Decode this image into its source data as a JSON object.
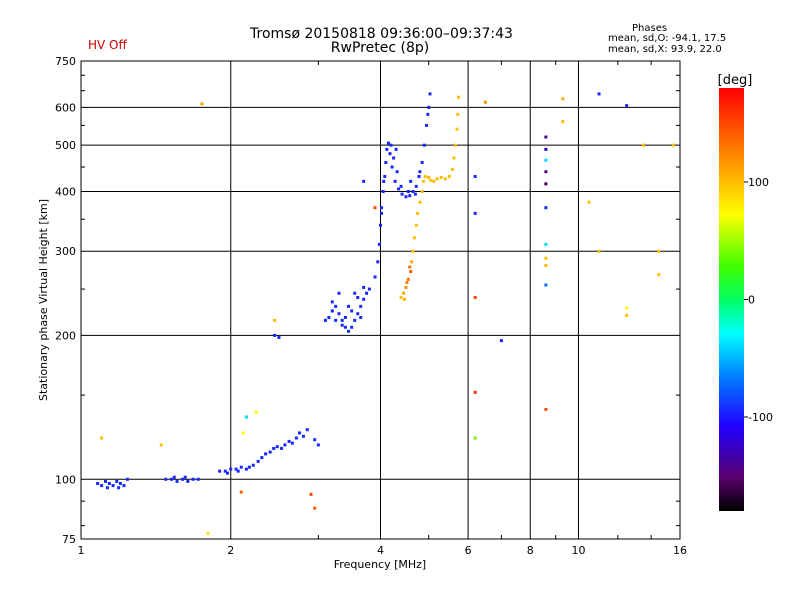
{
  "header": {
    "title": "Tromsø 20150818 09:36:00–09:37:43",
    "subtitle": "RwPretec (8p)",
    "hv_status": "HV Off",
    "phases_title": "Phases",
    "stat_o": "mean, sd,O: -94.1, 17.5",
    "stat_x": "mean, sd,X:  93.9, 22.0"
  },
  "colors": {
    "hv_status": "#d00000",
    "o_mode_typical": "#1040e0",
    "x_mode_typical": "#e0e000"
  },
  "chart_data": {
    "type": "scatter",
    "title": "Tromsø 20150818 09:36:00–09:37:43",
    "subtitle": "RwPretec (8p)",
    "xlabel": "Frequency [MHz]",
    "ylabel": "Stationary phase Virtual Height [km]",
    "x_scale": "log",
    "y_scale": "log",
    "xlim": [
      1,
      16
    ],
    "ylim": [
      75,
      750
    ],
    "x_ticks": [
      1,
      2,
      4,
      6,
      8,
      10,
      16
    ],
    "x_tick_labels": [
      "1",
      "2",
      "4",
      "6",
      "8",
      "10",
      "16"
    ],
    "y_ticks": [
      75,
      100,
      200,
      300,
      400,
      500,
      600,
      750
    ],
    "y_tick_labels": [
      "75",
      "100",
      "200",
      "300",
      "400",
      "500",
      "600",
      "750"
    ],
    "grid": true,
    "colorbar": {
      "label": "[deg]",
      "range": [
        -180,
        180
      ],
      "ticks": [
        100,
        0,
        -100
      ],
      "tick_labels": [
        "100",
        "0",
        "-100"
      ]
    },
    "series": [
      {
        "points": [
          [
            1.08,
            98,
            -95
          ],
          [
            1.1,
            97,
            -95
          ],
          [
            1.12,
            99,
            -95
          ],
          [
            1.14,
            98,
            -95
          ],
          [
            1.16,
            97,
            -95
          ],
          [
            1.18,
            99,
            -95
          ],
          [
            1.2,
            98,
            -95
          ],
          [
            1.22,
            97,
            -95
          ],
          [
            1.24,
            100,
            -95
          ],
          [
            1.13,
            96,
            -95
          ],
          [
            1.19,
            96,
            -95
          ],
          [
            1.48,
            100,
            -95
          ],
          [
            1.52,
            100,
            -95
          ],
          [
            1.56,
            99,
            -95
          ],
          [
            1.6,
            100,
            -95
          ],
          [
            1.64,
            99,
            -95
          ],
          [
            1.68,
            100,
            -95
          ],
          [
            1.72,
            100,
            -95
          ],
          [
            1.54,
            101,
            -95
          ],
          [
            1.62,
            101,
            -95
          ],
          [
            1.9,
            104,
            -95
          ],
          [
            1.95,
            104,
            -95
          ],
          [
            2.0,
            105,
            -95
          ],
          [
            2.05,
            105,
            -95
          ],
          [
            2.1,
            106,
            -95
          ],
          [
            2.15,
            105,
            -95
          ],
          [
            2.18,
            106,
            -95
          ],
          [
            1.97,
            103,
            -95
          ],
          [
            2.07,
            104,
            -95
          ],
          [
            2.22,
            107,
            -95
          ],
          [
            2.27,
            109,
            -95
          ],
          [
            2.31,
            111,
            -95
          ],
          [
            2.35,
            113,
            -95
          ],
          [
            2.4,
            114,
            -95
          ],
          [
            2.44,
            116,
            -95
          ],
          [
            2.48,
            117,
            -95
          ],
          [
            2.53,
            116,
            -95
          ],
          [
            2.57,
            118,
            -95
          ],
          [
            2.62,
            120,
            -95
          ],
          [
            2.66,
            119,
            -95
          ],
          [
            2.71,
            122,
            -95
          ],
          [
            2.75,
            125,
            -95
          ],
          [
            2.8,
            123,
            -95
          ],
          [
            2.85,
            127,
            -95
          ],
          [
            2.95,
            121,
            -95
          ],
          [
            3.0,
            118,
            -95
          ],
          [
            2.45,
            200,
            -95
          ],
          [
            2.5,
            198,
            -95
          ],
          [
            3.1,
            215,
            -95
          ],
          [
            3.15,
            218,
            -95
          ],
          [
            3.2,
            225,
            -95
          ],
          [
            3.25,
            230,
            -95
          ],
          [
            3.3,
            222,
            -95
          ],
          [
            3.35,
            215,
            -95
          ],
          [
            3.4,
            208,
            -95
          ],
          [
            3.45,
            204,
            -95
          ],
          [
            3.5,
            208,
            -95
          ],
          [
            3.55,
            215,
            -95
          ],
          [
            3.6,
            222,
            -95
          ],
          [
            3.65,
            230,
            -95
          ],
          [
            3.7,
            238,
            -95
          ],
          [
            3.75,
            245,
            -95
          ],
          [
            3.8,
            250,
            -95
          ],
          [
            3.2,
            235,
            -95
          ],
          [
            3.3,
            245,
            -95
          ],
          [
            3.4,
            218,
            -95
          ],
          [
            3.5,
            225,
            -95
          ],
          [
            3.6,
            240,
            -95
          ],
          [
            3.7,
            252,
            -95
          ],
          [
            3.35,
            210,
            -95
          ],
          [
            3.45,
            230,
            -95
          ],
          [
            3.55,
            245,
            -95
          ],
          [
            3.25,
            215,
            -95
          ],
          [
            3.65,
            218,
            -95
          ],
          [
            3.9,
            265,
            -95
          ],
          [
            3.95,
            285,
            -95
          ],
          [
            3.98,
            310,
            -95
          ],
          [
            4.0,
            340,
            -95
          ],
          [
            4.02,
            370,
            -95
          ],
          [
            4.05,
            400,
            -95
          ],
          [
            4.08,
            430,
            -95
          ],
          [
            4.1,
            460,
            -95
          ],
          [
            4.12,
            490,
            -95
          ],
          [
            4.15,
            505,
            -95
          ],
          [
            4.18,
            480,
            -95
          ],
          [
            4.22,
            450,
            -95
          ],
          [
            4.28,
            420,
            -95
          ],
          [
            4.35,
            405,
            -95
          ],
          [
            4.42,
            395,
            -95
          ],
          [
            4.5,
            390,
            -95
          ],
          [
            4.58,
            392,
            -95
          ],
          [
            4.65,
            400,
            -95
          ],
          [
            4.72,
            410,
            -95
          ],
          [
            4.78,
            430,
            -95
          ],
          [
            4.85,
            460,
            -95
          ],
          [
            4.9,
            500,
            -95
          ],
          [
            4.95,
            550,
            -95
          ],
          [
            5.0,
            600,
            -95
          ],
          [
            5.03,
            640,
            -95
          ],
          [
            4.25,
            470,
            -95
          ],
          [
            4.32,
            440,
            -95
          ],
          [
            4.4,
            410,
            -95
          ],
          [
            4.55,
            400,
            -95
          ],
          [
            4.7,
            395,
            -95
          ],
          [
            4.02,
            360,
            -95
          ],
          [
            4.06,
            420,
            -95
          ],
          [
            4.2,
            500,
            -95
          ],
          [
            4.3,
            490,
            -95
          ],
          [
            4.6,
            420,
            -95
          ],
          [
            4.8,
            440,
            -95
          ],
          [
            4.98,
            580,
            -95
          ],
          [
            3.7,
            420,
            -95
          ],
          [
            6.2,
            430,
            -95
          ],
          [
            6.2,
            360,
            -95
          ],
          [
            7.0,
            195,
            -95
          ],
          [
            8.6,
            370,
            -95
          ],
          [
            11.0,
            640,
            -95
          ],
          [
            12.5,
            605,
            -95
          ],
          [
            8.6,
            520,
            -140
          ],
          [
            8.6,
            440,
            -140
          ],
          [
            8.6,
            465,
            -40
          ],
          [
            8.6,
            310,
            -40
          ],
          [
            8.6,
            255,
            -70
          ],
          [
            8.6,
            490,
            -120
          ],
          [
            8.6,
            415,
            -160
          ],
          [
            2.15,
            135,
            -40
          ],
          [
            2.25,
            138,
            70
          ],
          [
            2.12,
            125,
            70
          ],
          [
            1.75,
            610,
            110
          ],
          [
            1.1,
            122,
            100
          ],
          [
            1.45,
            118,
            100
          ],
          [
            1.8,
            77,
            80
          ],
          [
            2.45,
            215,
            100
          ],
          [
            2.1,
            94,
            140
          ],
          [
            2.9,
            93,
            150
          ],
          [
            2.95,
            87,
            140
          ],
          [
            3.9,
            370,
            150
          ],
          [
            4.4,
            240,
            100
          ],
          [
            4.45,
            245,
            110
          ],
          [
            4.5,
            252,
            120
          ],
          [
            4.55,
            262,
            130
          ],
          [
            4.6,
            272,
            140
          ],
          [
            4.62,
            285,
            110
          ],
          [
            4.65,
            300,
            100
          ],
          [
            4.68,
            320,
            100
          ],
          [
            4.72,
            340,
            100
          ],
          [
            4.75,
            360,
            100
          ],
          [
            4.8,
            380,
            100
          ],
          [
            4.85,
            400,
            100
          ],
          [
            4.88,
            420,
            100
          ],
          [
            4.92,
            430,
            100
          ],
          [
            5.0,
            428,
            100
          ],
          [
            5.05,
            422,
            100
          ],
          [
            5.12,
            420,
            100
          ],
          [
            5.2,
            425,
            100
          ],
          [
            5.3,
            428,
            100
          ],
          [
            5.4,
            425,
            100
          ],
          [
            5.5,
            430,
            100
          ],
          [
            5.58,
            445,
            100
          ],
          [
            5.62,
            470,
            100
          ],
          [
            5.66,
            500,
            100
          ],
          [
            5.7,
            540,
            100
          ],
          [
            5.72,
            580,
            100
          ],
          [
            5.74,
            630,
            100
          ],
          [
            4.58,
            278,
            130
          ],
          [
            4.47,
            238,
            105
          ],
          [
            4.52,
            258,
            125
          ],
          [
            6.2,
            240,
            150
          ],
          [
            6.2,
            152,
            160
          ],
          [
            6.2,
            122,
            40
          ],
          [
            6.5,
            615,
            120
          ],
          [
            8.6,
            290,
            100
          ],
          [
            8.6,
            280,
            100
          ],
          [
            8.6,
            140,
            150
          ],
          [
            9.3,
            625,
            110
          ],
          [
            9.3,
            560,
            100
          ],
          [
            10.5,
            380,
            100
          ],
          [
            11.0,
            300,
            100
          ],
          [
            12.5,
            228,
            70
          ],
          [
            12.5,
            220,
            100
          ],
          [
            13.5,
            500,
            100
          ],
          [
            14.5,
            268,
            100
          ],
          [
            14.5,
            300,
            100
          ],
          [
            15.5,
            500,
            100
          ]
        ]
      }
    ]
  }
}
